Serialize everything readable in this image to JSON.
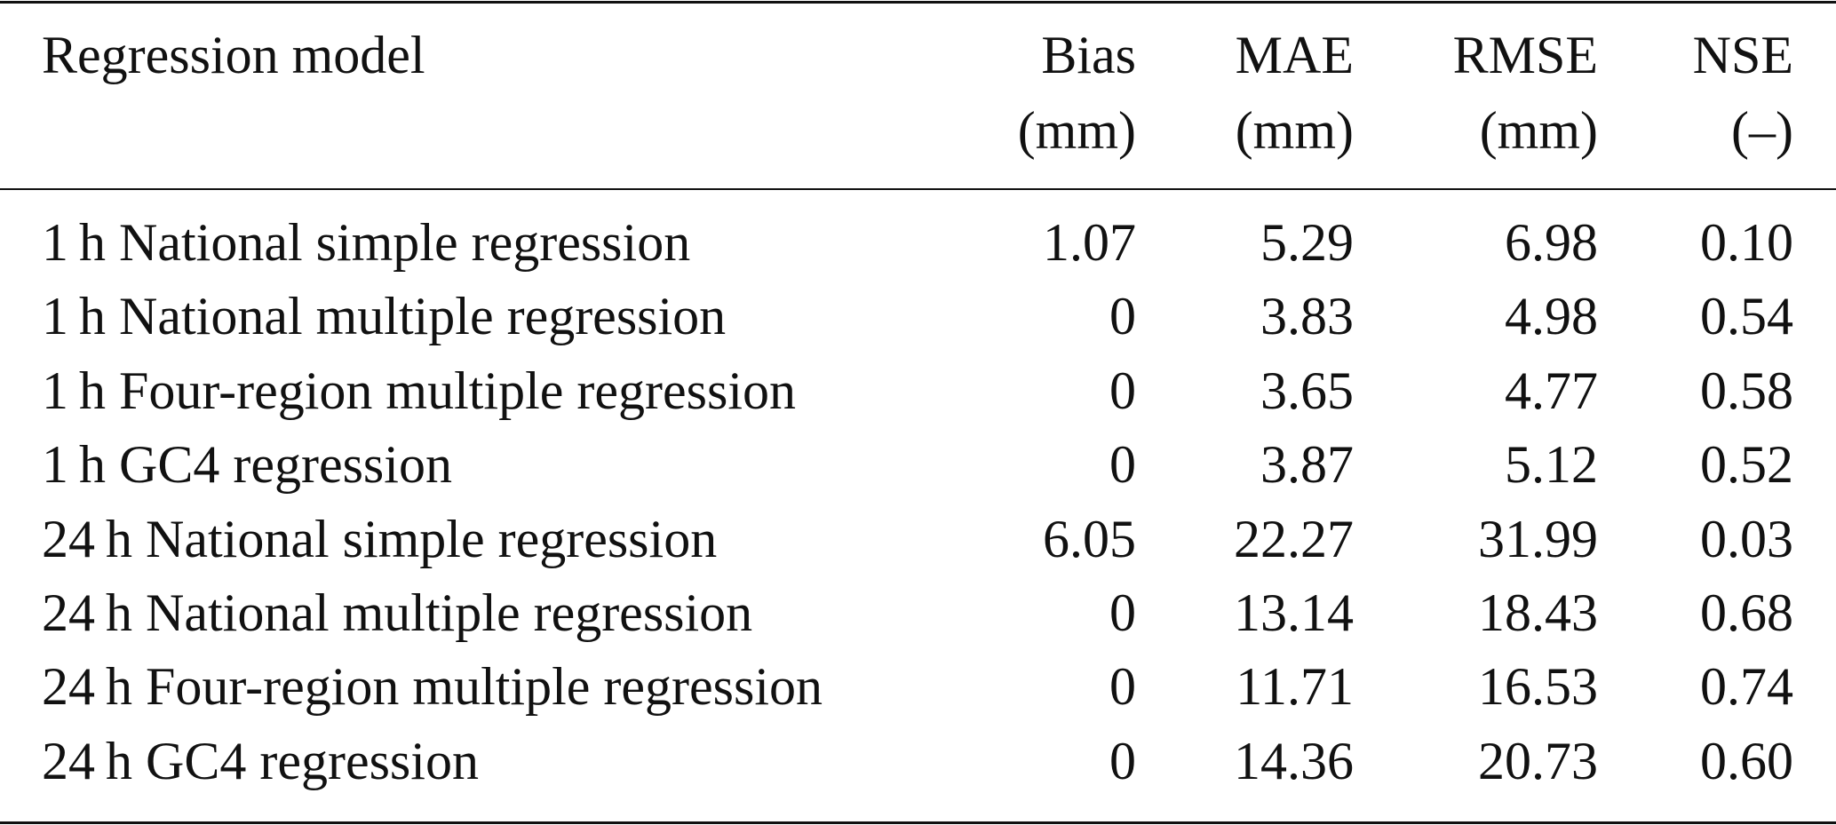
{
  "table": {
    "header": [
      {
        "name": "Regression model"
      },
      {
        "name": "Bias",
        "unit": "(mm)"
      },
      {
        "name": "MAE",
        "unit": "(mm)"
      },
      {
        "name": "RMSE",
        "unit": "(mm)"
      },
      {
        "name": "NSE",
        "unit": "(–)"
      }
    ],
    "rows": [
      [
        "1 h National simple regression",
        "1.07",
        "5.29",
        "6.98",
        "0.10"
      ],
      [
        "1 h National multiple regression",
        "0",
        "3.83",
        "4.98",
        "0.54"
      ],
      [
        "1 h Four-region multiple regression",
        "0",
        "3.65",
        "4.77",
        "0.58"
      ],
      [
        "1 h GC4 regression",
        "0",
        "3.87",
        "5.12",
        "0.52"
      ],
      [
        "24 h National simple regression",
        "6.05",
        "22.27",
        "31.99",
        "0.03"
      ],
      [
        "24 h National multiple regression",
        "0",
        "13.14",
        "18.43",
        "0.68"
      ],
      [
        "24 h Four-region multiple regression",
        "0",
        "11.71",
        "16.53",
        "0.74"
      ],
      [
        "24 h GC4 regression",
        "0",
        "14.36",
        "20.73",
        "0.60"
      ]
    ]
  }
}
